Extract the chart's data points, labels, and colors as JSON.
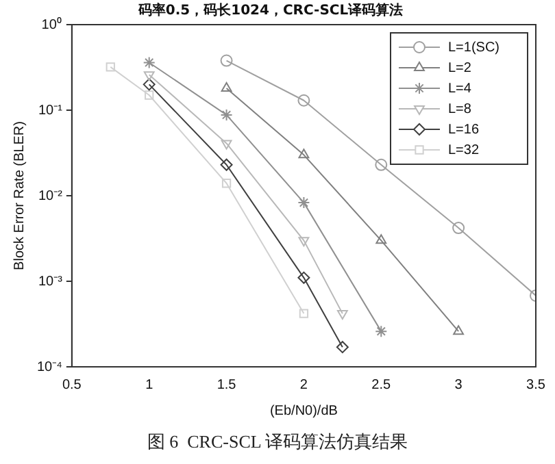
{
  "chart_data": {
    "type": "line",
    "title": "码率0.5，码长1024，CRC-SCL译码算法",
    "xlabel": "(Eb/N0)/dB",
    "ylabel": "Block Error Rate (BLER)",
    "annotations": [
      "图 6  CRC-SCL 译码算法仿真结果"
    ],
    "log": "y",
    "xlim": [
      0.5,
      3.5
    ],
    "xticks": [
      0.5,
      1,
      1.5,
      2,
      2.5,
      3,
      3.5
    ],
    "ylim": [
      0.0001,
      1
    ],
    "yticks": [
      {
        "value": 0.0001,
        "label": "10⁻⁴"
      },
      {
        "value": 0.001,
        "label": "10⁻³"
      },
      {
        "value": 0.01,
        "label": "10⁻²"
      },
      {
        "value": 0.1,
        "label": "10⁻¹"
      },
      {
        "value": 1,
        "label": "10⁰"
      }
    ],
    "legend": "top right",
    "grid": false,
    "line_style": "solid",
    "series": [
      {
        "name": "L=1(SC)",
        "color": "#a0a0a0",
        "marker": "circle",
        "x": [
          1.5,
          2,
          2.5,
          3,
          3.5
        ],
        "values": [
          0.38,
          0.13,
          0.023,
          0.0042,
          0.00068
        ]
      },
      {
        "name": "L=2",
        "color": "#808080",
        "marker": "triangle",
        "x": [
          1.5,
          2,
          2.5,
          3
        ],
        "values": [
          0.18,
          0.03,
          0.003,
          0.00026
        ]
      },
      {
        "name": "L=4",
        "color": "#909090",
        "marker": "cross",
        "x": [
          1,
          1.5,
          2,
          2.5
        ],
        "values": [
          0.36,
          0.088,
          0.0083,
          0.00026
        ]
      },
      {
        "name": "L=8",
        "color": "#b8b8b8",
        "marker": "triangle_down",
        "x": [
          1,
          1.5,
          2,
          2.25
        ],
        "values": [
          0.26,
          0.041,
          0.003,
          0.00042
        ]
      },
      {
        "name": "L=16",
        "color": "#404040",
        "marker": "diamond",
        "x": [
          1,
          1.5,
          2,
          2.25
        ],
        "values": [
          0.2,
          0.023,
          0.0011,
          0.00017
        ]
      },
      {
        "name": "L=32",
        "color": "#d0d0d0",
        "marker": "square",
        "x": [
          0.75,
          1,
          1.5,
          2
        ],
        "values": [
          0.32,
          0.15,
          0.014,
          0.00042
        ]
      }
    ]
  }
}
